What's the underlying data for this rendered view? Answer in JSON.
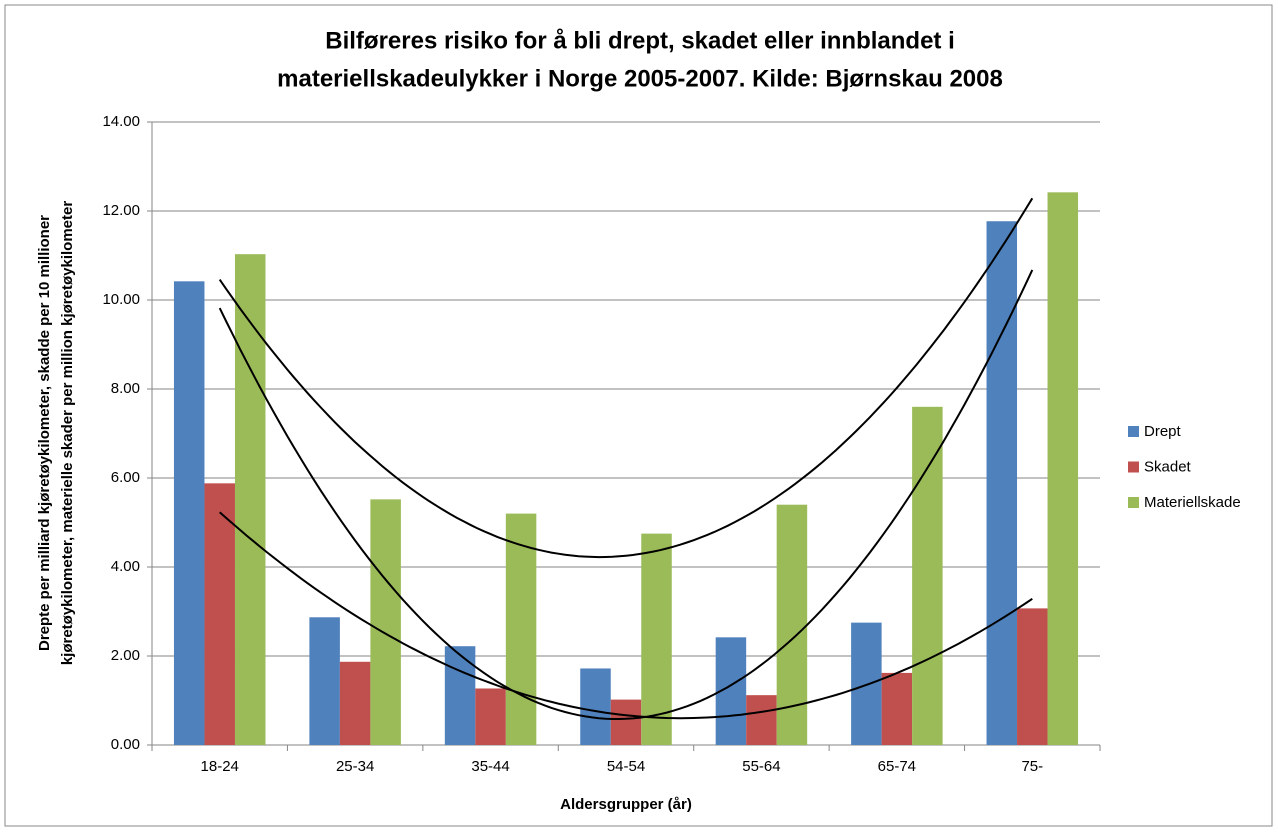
{
  "chart_data": {
    "type": "bar",
    "title": [
      "Bilføreres risiko for å bli drept, skadet eller innblandet i",
      "materiellskadeulykker i Norge 2005-2007.  Kilde: Bjørnskau 2008"
    ],
    "y_label": [
      "Drepte per milliard kjøretøykilometer, skadde per 10 millioner",
      "kjøretøykilometer, materielle skader per million kjøretøykilometer"
    ],
    "x_label": "Aldersgrupper (år)",
    "categories": [
      "18-24",
      "25-34",
      "35-44",
      "54-54",
      "55-64",
      "65-74",
      "75-"
    ],
    "series": [
      {
        "name": "Drept",
        "color": "#4f81bd",
        "values": [
          10.42,
          2.87,
          2.22,
          1.72,
          2.42,
          2.75,
          11.77
        ]
      },
      {
        "name": "Skadet",
        "color": "#c0504d",
        "values": [
          5.88,
          1.87,
          1.27,
          1.02,
          1.12,
          1.62,
          3.07
        ]
      },
      {
        "name": "Materiellskade",
        "color": "#9bbb59",
        "values": [
          11.03,
          5.52,
          5.2,
          4.75,
          5.4,
          7.6,
          12.42
        ]
      }
    ],
    "ylim": [
      0,
      14
    ],
    "yticks": [
      {
        "value": 0,
        "label": "0.00"
      },
      {
        "value": 2,
        "label": "2.00"
      },
      {
        "value": 4,
        "label": "4.00"
      },
      {
        "value": 6,
        "label": "6.00"
      },
      {
        "value": 8,
        "label": "8.00"
      },
      {
        "value": 10,
        "label": "10.00"
      },
      {
        "value": 12,
        "label": "12.00"
      },
      {
        "value": 14,
        "label": "14.00"
      }
    ],
    "grid": true,
    "trendline": "polynomial-2",
    "legend": "right"
  }
}
